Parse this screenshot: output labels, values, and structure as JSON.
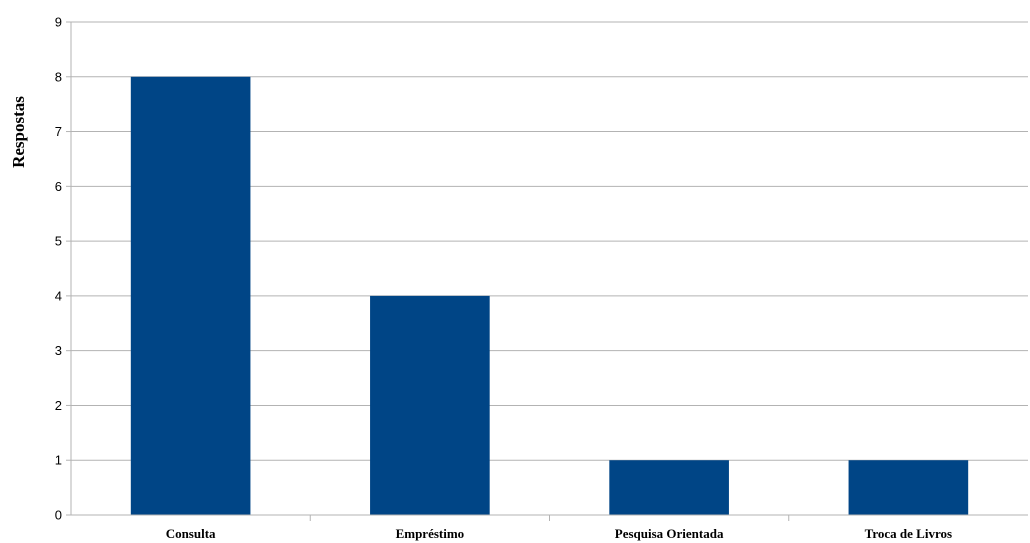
{
  "chart_data": {
    "type": "bar",
    "title": "",
    "xlabel": "",
    "ylabel": "Respostas",
    "categories": [
      "Consulta",
      "Empréstimo",
      "Pesquisa Orientada",
      "Troca de Livros"
    ],
    "values": [
      8,
      4,
      1,
      1
    ],
    "ylim": [
      0,
      9
    ],
    "yticks": [
      0,
      1,
      2,
      3,
      4,
      5,
      6,
      7,
      8,
      9
    ],
    "grid": true,
    "legend": "none",
    "bar_color": "#004586"
  }
}
